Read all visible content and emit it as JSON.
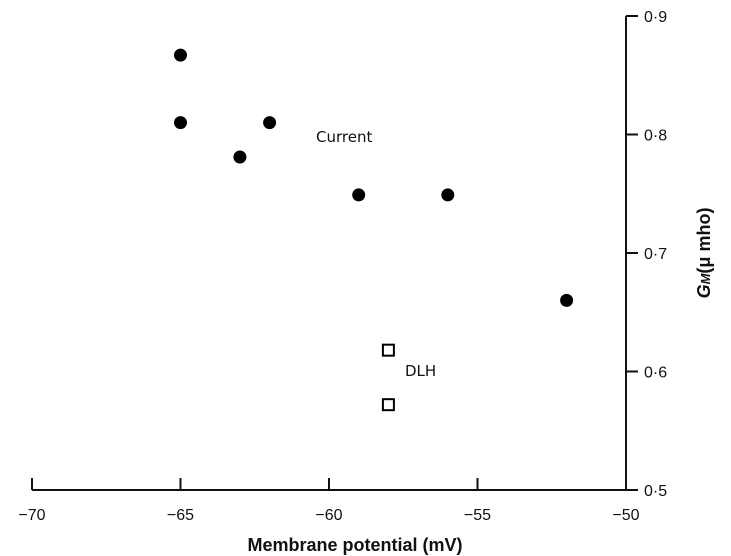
{
  "chart_data": {
    "type": "scatter",
    "xlabel": "Membrane potential (mV)",
    "ylabel_main": "G",
    "ylabel_sub": "M",
    "ylabel_rest": "(μ mho)",
    "xlim": [
      -70,
      -50
    ],
    "ylim": [
      0.5,
      0.9
    ],
    "x_ticks": [
      -70,
      -65,
      -60,
      -55,
      -50
    ],
    "x_tick_labels": [
      "−70",
      "−65",
      "−60",
      "−55",
      "−50"
    ],
    "y_ticks": [
      0.5,
      0.6,
      0.7,
      0.8,
      0.9
    ],
    "y_tick_labels": [
      "0·5",
      "0·6",
      "0·7",
      "0·8",
      "0·9"
    ],
    "y_axis_side": "right",
    "grid": false,
    "series": [
      {
        "name": "Current",
        "marker": "filled-circle",
        "color": "#000000",
        "points": [
          {
            "x": -65,
            "y": 0.867
          },
          {
            "x": -65,
            "y": 0.81
          },
          {
            "x": -63,
            "y": 0.781
          },
          {
            "x": -62,
            "y": 0.81
          },
          {
            "x": -59,
            "y": 0.749
          },
          {
            "x": -56,
            "y": 0.749
          },
          {
            "x": -52,
            "y": 0.66
          }
        ]
      },
      {
        "name": "DLH",
        "marker": "open-square",
        "color": "#000000",
        "points": [
          {
            "x": -58,
            "y": 0.618
          },
          {
            "x": -58,
            "y": 0.572
          }
        ]
      }
    ]
  }
}
